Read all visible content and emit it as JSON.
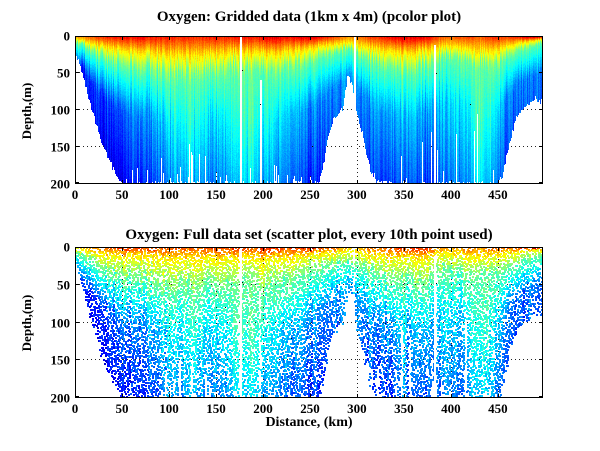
{
  "figure": {
    "background": "#ffffff",
    "axis_color": "#000000",
    "text_color": "#000000"
  },
  "chart_data": {
    "type": [
      "pcolor",
      "scatter"
    ],
    "panels": [
      {
        "title": "Oxygen: Gridded data (1km x 4m) (pcolor plot)",
        "plot_type": "pcolor"
      },
      {
        "title": "Oxygen: Full data set (scatter plot, every 10th point used)",
        "plot_type": "scatter"
      }
    ],
    "xlabel": "Distance, (km)",
    "ylabel": "Depth,(m)",
    "x_range_km": [
      0,
      498
    ],
    "depth_range_m": [
      0,
      200
    ],
    "x_ticks": [
      0,
      50,
      100,
      150,
      200,
      250,
      300,
      350,
      400,
      450
    ],
    "x_tick_labels": [
      "0",
      "50",
      "100",
      "150",
      "200",
      "250",
      "300",
      "350",
      "400",
      "450"
    ],
    "y_ticks": [
      0,
      50,
      100,
      150,
      200
    ],
    "y_tick_labels": [
      "0",
      "50",
      "100",
      "150",
      "200"
    ],
    "grid": "dotted",
    "colormap": "jet",
    "field_model": {
      "comment": "Oxygen section: jet-colormap value field v(x,z); white = no data (below seafloor / gaps)",
      "bathy_step_km": 5,
      "bathymetry_m": [
        22,
        38,
        60,
        85,
        108,
        128,
        147,
        163,
        177,
        190,
        199,
        200,
        200,
        200,
        200,
        200,
        200,
        200,
        200,
        200,
        200,
        200,
        200,
        200,
        200,
        200,
        200,
        200,
        200,
        200,
        200,
        200,
        200,
        200,
        200,
        200,
        200,
        200,
        200,
        200,
        200,
        200,
        200,
        200,
        200,
        200,
        200,
        200,
        200,
        200,
        200,
        200,
        198,
        172,
        134,
        114,
        103,
        100,
        56,
        62,
        102,
        127,
        158,
        184,
        198,
        200,
        200,
        200,
        200,
        200,
        200,
        200,
        200,
        200,
        200,
        200,
        200,
        200,
        200,
        200,
        200,
        200,
        200,
        200,
        200,
        200,
        200,
        200,
        200,
        200,
        200,
        188,
        157,
        133,
        110,
        103,
        97,
        91,
        84,
        90,
        86
      ],
      "sample_step_km": 10,
      "surface_value": [
        0.72,
        0.76,
        0.82,
        0.85,
        0.87,
        0.9,
        0.88,
        0.9,
        0.87,
        0.86,
        0.87,
        0.85,
        0.86,
        0.84,
        0.86,
        0.87,
        0.85,
        0.87,
        0.88,
        0.86,
        0.9,
        0.92,
        0.9,
        0.88,
        0.91,
        0.93,
        0.9,
        0.86,
        0.82,
        0.73,
        0.75,
        0.81,
        0.85,
        0.87,
        0.9,
        0.92,
        0.9,
        0.91,
        0.87,
        0.8,
        0.79,
        0.81,
        0.83,
        0.78,
        0.84,
        0.85,
        0.83,
        0.86,
        0.94,
        0.98,
        0.98
      ],
      "transition_depth_m": [
        8,
        14,
        22,
        30,
        36,
        40,
        44,
        46,
        48,
        52,
        56,
        58,
        56,
        54,
        52,
        50,
        48,
        46,
        50,
        52,
        54,
        50,
        46,
        44,
        40,
        34,
        28,
        26,
        24,
        17,
        24,
        30,
        36,
        42,
        46,
        50,
        48,
        44,
        38,
        28,
        31,
        34,
        38,
        40,
        42,
        38,
        30,
        22,
        16,
        12,
        10
      ],
      "deep_value": [
        0.05,
        0.06,
        0.07,
        0.08,
        0.1,
        0.13,
        0.15,
        0.16,
        0.18,
        0.2,
        0.24,
        0.28,
        0.3,
        0.28,
        0.26,
        0.24,
        0.26,
        0.3,
        0.32,
        0.34,
        0.3,
        0.26,
        0.24,
        0.22,
        0.2,
        0.17,
        0.15,
        0.15,
        0.16,
        0.18,
        0.17,
        0.16,
        0.17,
        0.18,
        0.2,
        0.22,
        0.2,
        0.19,
        0.18,
        0.22,
        0.26,
        0.24,
        0.28,
        0.34,
        0.31,
        0.24,
        0.17,
        0.14,
        0.14,
        0.15,
        0.15
      ],
      "gap_lines_km": [
        {
          "x": 176.5,
          "from_m": 0
        },
        {
          "x": 197.5,
          "from_m": 60
        },
        {
          "x": 297.5,
          "from_m": 0
        },
        {
          "x": 383.5,
          "from_m": 12
        }
      ],
      "bottom_gap_regions": [
        {
          "range": [
            45,
            145
          ],
          "p": 0.2,
          "max_h": 55
        },
        {
          "range": [
            145,
            258
          ],
          "p": 0.09,
          "max_h": 25
        },
        {
          "range": [
            300,
            320
          ],
          "p": 0.15,
          "max_h": 40
        },
        {
          "range": [
            320,
            430
          ],
          "p": 0.13,
          "max_h": 110
        },
        {
          "range": [
            430,
            452
          ],
          "p": 0.08,
          "max_h": 30
        }
      ],
      "stray_points": {
        "pcolor": [
          [
            178,
            46
          ],
          [
            197,
            92
          ],
          [
            252,
            148
          ],
          [
            300,
            140
          ],
          [
            384,
            50
          ],
          [
            420,
            92
          ]
        ],
        "scatter": [
          [
            135,
            44
          ],
          [
            160,
            80
          ],
          [
            178,
            46
          ],
          [
            230,
            120
          ],
          [
            300,
            60
          ],
          [
            330,
            100
          ],
          [
            384,
            48
          ],
          [
            400,
            130
          ]
        ]
      }
    }
  }
}
